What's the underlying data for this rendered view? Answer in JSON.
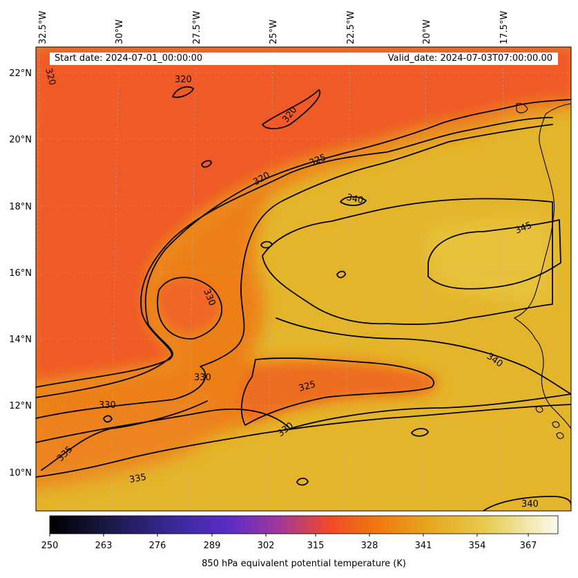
{
  "map": {
    "field": "850 hPa equivalent potential temperature (K)",
    "start_date_text": "Start date: 2024-07-01_00:00:00",
    "valid_date_text": "Valid_date: 2024-07-03T07:00:00.00",
    "longitude_ticks": [
      "32.5°W",
      "30°W",
      "27.5°W",
      "25°W",
      "22.5°W",
      "20°W",
      "17.5°W"
    ],
    "latitude_ticks": [
      "22°N",
      "20°N",
      "18°N",
      "16°N",
      "14°N",
      "12°N",
      "10°N"
    ],
    "contour_labels": [
      "320",
      "320",
      "320",
      "320",
      "325",
      "325",
      "330",
      "330",
      "330",
      "330",
      "335",
      "335",
      "340",
      "340",
      "340",
      "345"
    ],
    "colors": {
      "cool_field": "#f0582a",
      "warm_field": "#e4b52a",
      "contour_line": "#000000"
    }
  },
  "colorbar": {
    "label": "850 hPa equivalent potential temperature (K)",
    "ticks": [
      "250",
      "263",
      "276",
      "289",
      "302",
      "315",
      "328",
      "341",
      "354",
      "367"
    ],
    "range": [
      250,
      372
    ],
    "colormap": "CMRmap"
  }
}
